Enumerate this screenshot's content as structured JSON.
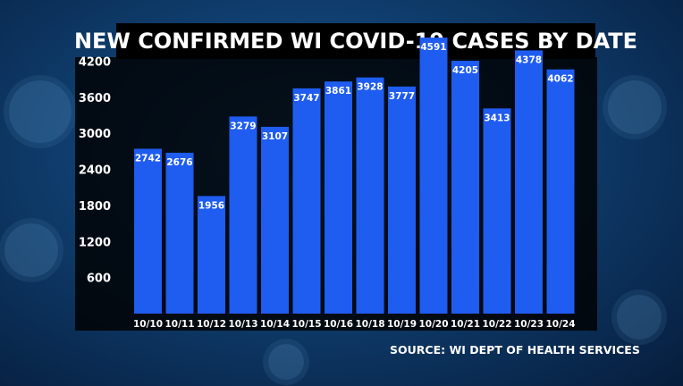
{
  "chart_data": {
    "type": "bar",
    "title": "NEW CONFIRMED WI COVID-19 CASES BY DATE",
    "categories": [
      "10/10",
      "10/11",
      "10/12",
      "10/13",
      "10/14",
      "10/15",
      "10/16",
      "10/18",
      "10/19",
      "10/20",
      "10/21",
      "10/22",
      "10/23",
      "10/24"
    ],
    "values": [
      2742,
      2676,
      1956,
      3279,
      3107,
      3747,
      3861,
      3928,
      3777,
      4591,
      4205,
      3413,
      4378,
      4062
    ],
    "data_labels": [
      "2742",
      "2676",
      "1956",
      "3279",
      "3107",
      "3747",
      "3861",
      "3928",
      "3777",
      "4591",
      "4205",
      "3413",
      "4378",
      "4062"
    ],
    "yticks": [
      600,
      1200,
      1800,
      2400,
      3000,
      3600,
      4200
    ],
    "ytick_labels": [
      "600",
      "1200",
      "1800",
      "2400",
      "3000",
      "3600",
      "4200"
    ],
    "ylim": [
      0,
      4800
    ],
    "xlabel": "",
    "ylabel": "",
    "grid": false,
    "bar_color": "#1f5cf0",
    "label_color": "#ffffff"
  },
  "source": "SOURCE: WI DEPT OF HEALTH SERVICES"
}
